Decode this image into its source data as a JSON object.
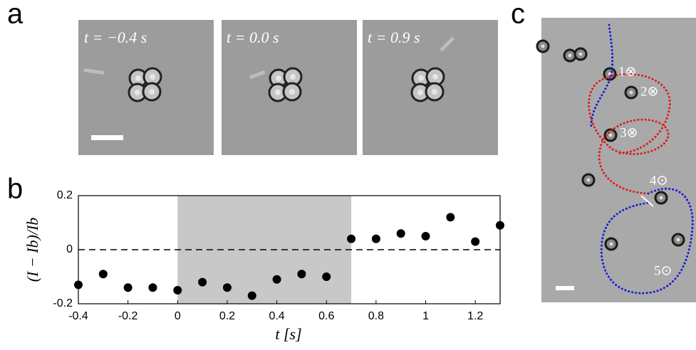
{
  "panel_labels": [
    "a",
    "b",
    "c"
  ],
  "panel_a": {
    "frames": [
      "t = −0.4 s",
      "t = 0.0 s",
      "t = 0.9 s"
    ]
  },
  "chart_data": {
    "type": "scatter",
    "x": [
      -0.4,
      -0.3,
      -0.2,
      -0.1,
      0,
      0.1,
      0.2,
      0.3,
      0.4,
      0.5,
      0.6,
      0.7,
      0.8,
      0.9,
      1.0,
      1.1,
      1.2,
      1.3
    ],
    "values": [
      -0.13,
      -0.09,
      -0.14,
      -0.14,
      -0.15,
      -0.12,
      -0.14,
      -0.17,
      -0.11,
      -0.09,
      -0.1,
      0.04,
      0.04,
      0.06,
      0.05,
      0.12,
      0.03,
      0.09
    ],
    "color": "#000000",
    "xlim": [
      -0.4,
      1.3
    ],
    "ylim": [
      -0.2,
      0.2
    ],
    "xticks": [
      -0.4,
      -0.2,
      0,
      0.2,
      0.4,
      0.6,
      0.8,
      1,
      1.2
    ],
    "yticks": [
      0.2,
      0,
      -0.2
    ],
    "xlabel": "t [s]",
    "ylabel": "(I − Ib)/Ib",
    "shaded_range": [
      0,
      0.7
    ],
    "reference_line": 0
  },
  "panel_c": {
    "labels": [
      "1⊗",
      "2⊗",
      "3⊗",
      "4⊙",
      "5⊙"
    ]
  }
}
